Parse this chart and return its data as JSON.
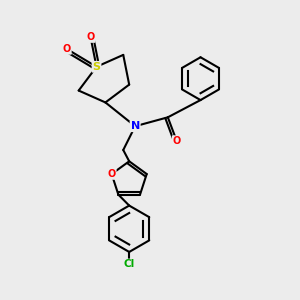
{
  "bg_color": "#ececec",
  "bond_color": "#000000",
  "bond_width": 1.5,
  "atom_colors": {
    "N": "#0000ff",
    "O": "#ff0000",
    "S": "#cccc00",
    "Cl": "#00aa00",
    "C": "#000000"
  },
  "figsize": [
    3.0,
    3.0
  ],
  "dpi": 100
}
